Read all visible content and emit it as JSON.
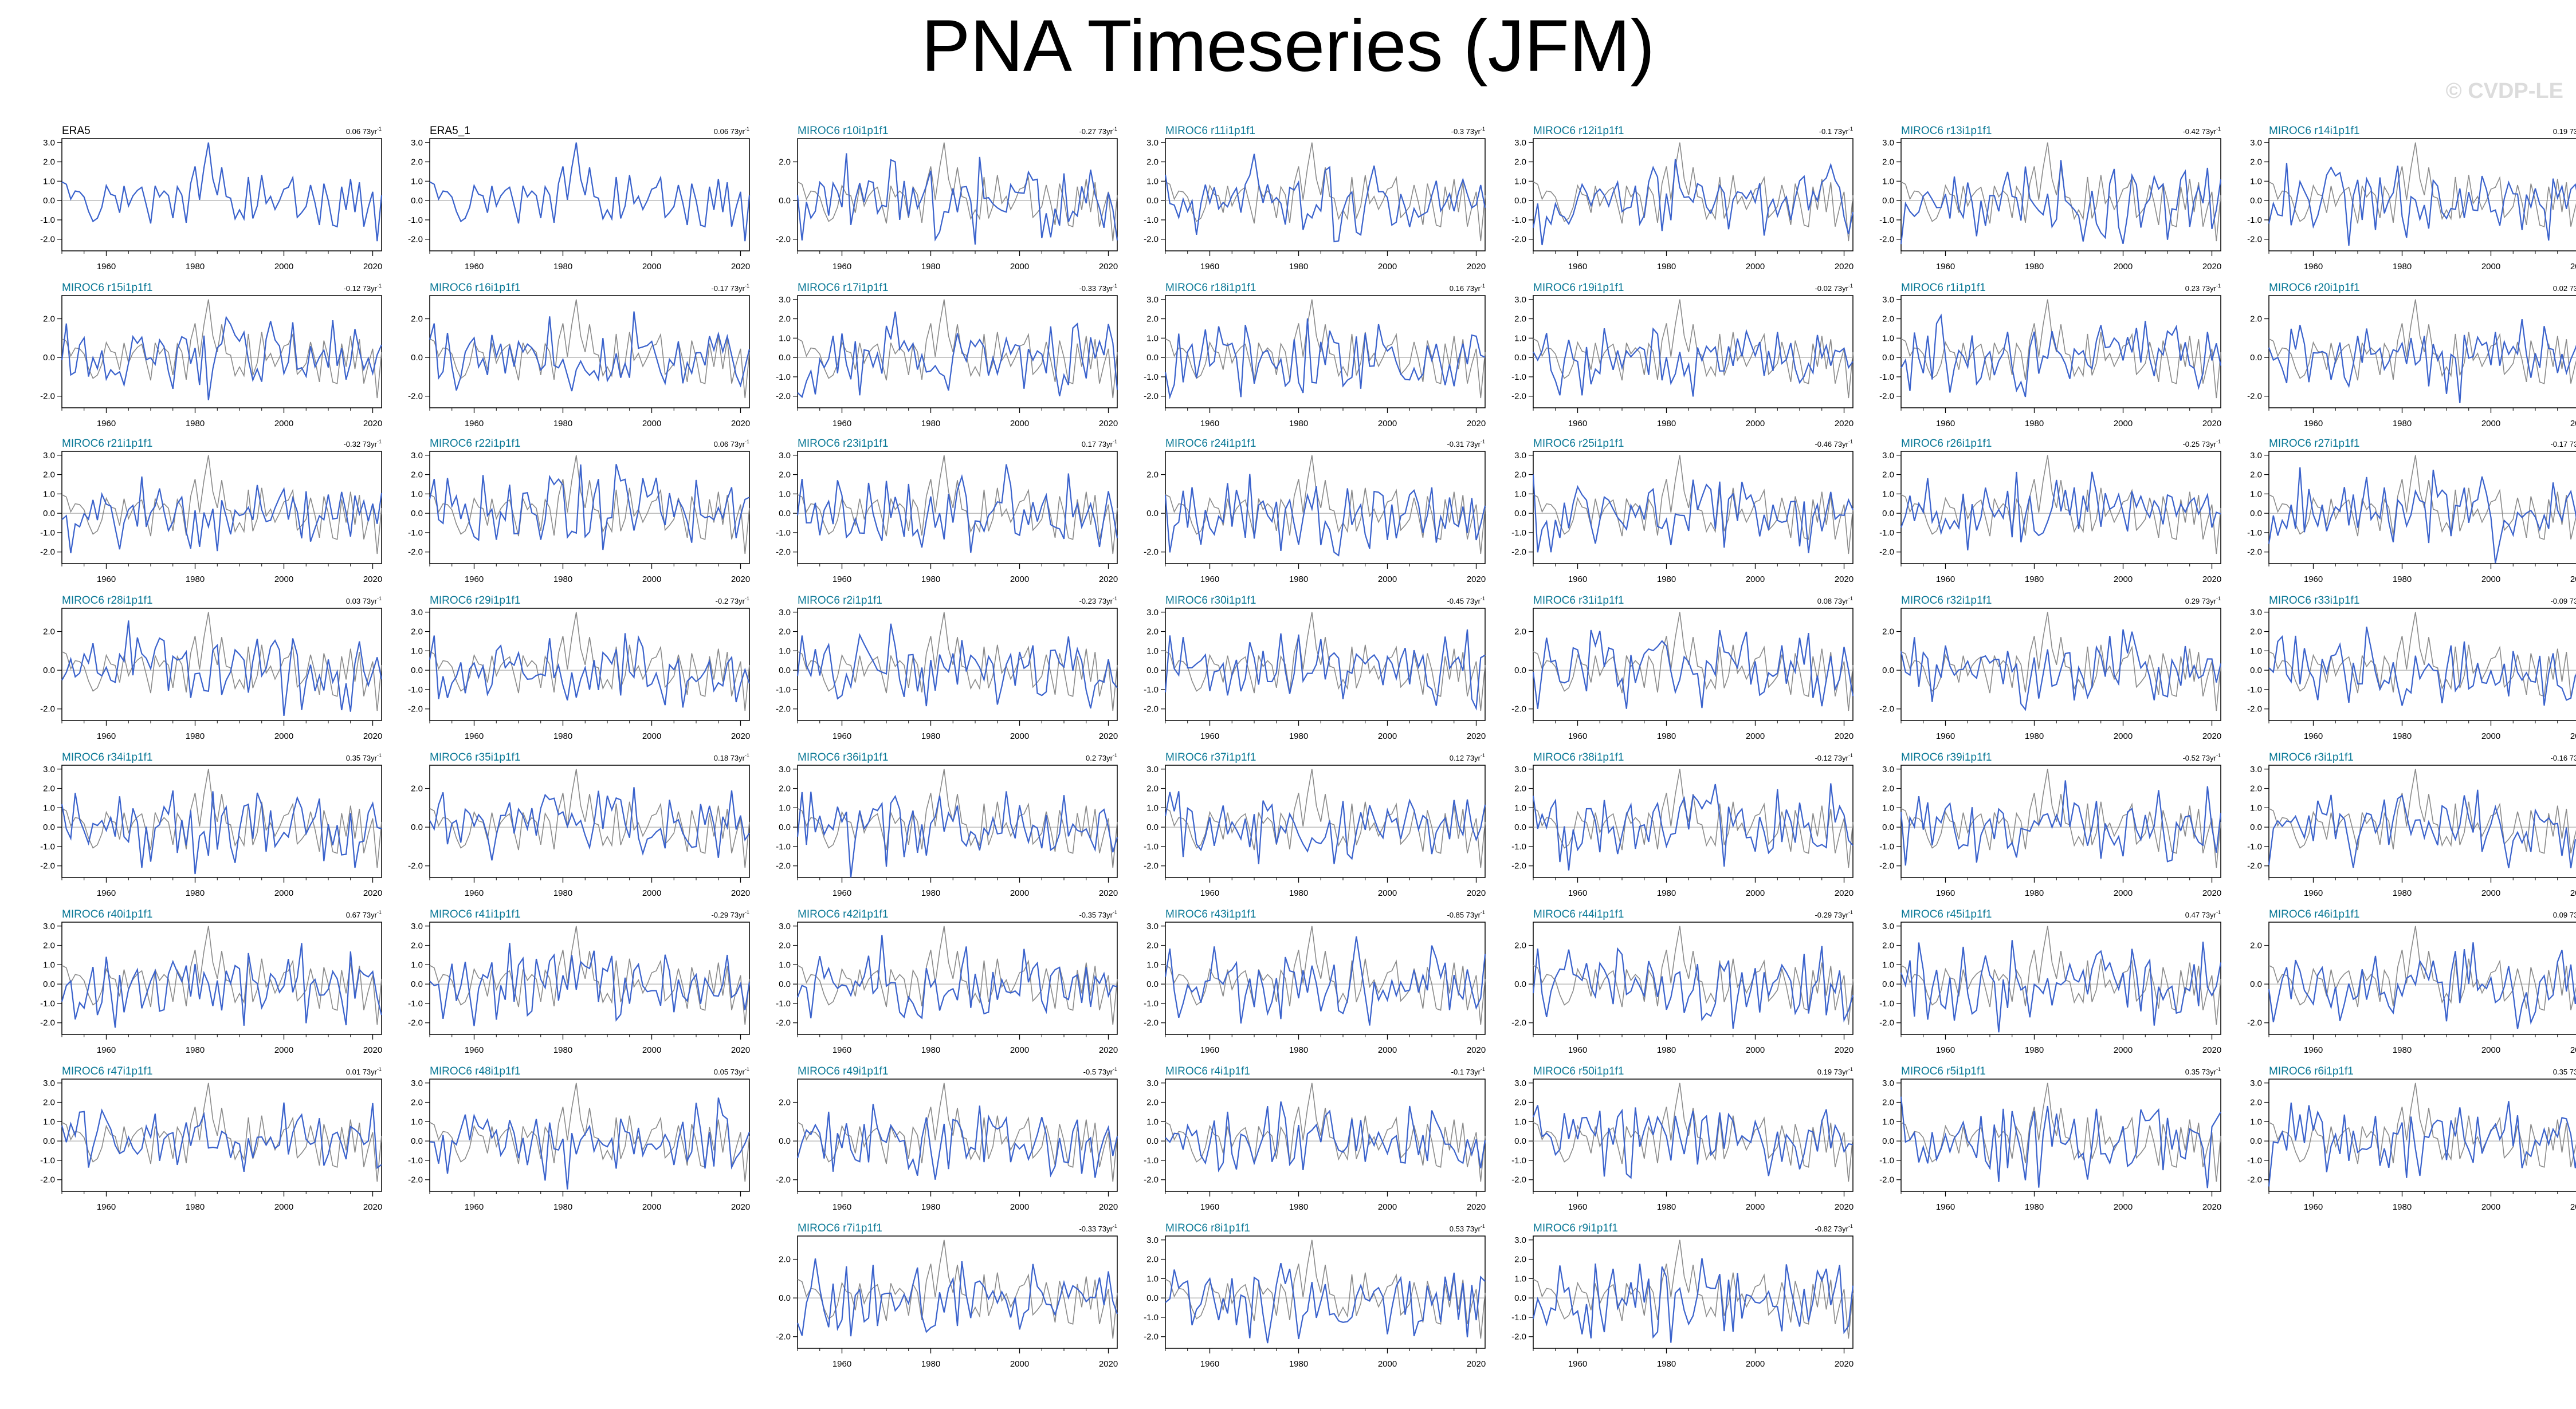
{
  "title": "PNA Timeseries (JFM)",
  "watermark": "© CVDP-LE",
  "colors": {
    "model": "#3a62cc",
    "observed": "#8a8a8a",
    "obs_title": "#000000",
    "model_title": "#0a7896",
    "axis": "#000000"
  },
  "chart_data": {
    "type": "line",
    "x_range": [
      1950,
      2022
    ],
    "x_ticks": [
      1960,
      1980,
      2000,
      2020
    ],
    "trend_unit": "73yr",
    "panels": [
      {
        "label": "ERA5",
        "trend": "0.06",
        "obs": true,
        "yticks": [
          "3.0",
          "2.0",
          "1.0",
          "0.0",
          "-1.0",
          "-2.0"
        ]
      },
      {
        "label": "ERA5_1",
        "trend": "0.06",
        "obs": true,
        "yticks": [
          "3.0",
          "2.0",
          "1.0",
          "0.0",
          "-1.0",
          "-2.0"
        ]
      },
      {
        "label": "MIROC6 r10i1p1f1",
        "trend": "-0.27",
        "yticks": [
          "2.0",
          "0.0",
          "-2.0"
        ]
      },
      {
        "label": "MIROC6 r11i1p1f1",
        "trend": "-0.3",
        "yticks": [
          "3.0",
          "2.0",
          "1.0",
          "0.0",
          "-1.0",
          "-2.0"
        ]
      },
      {
        "label": "MIROC6 r12i1p1f1",
        "trend": "-0.1",
        "yticks": [
          "3.0",
          "2.0",
          "1.0",
          "0.0",
          "-1.0",
          "-2.0"
        ]
      },
      {
        "label": "MIROC6 r13i1p1f1",
        "trend": "-0.42",
        "yticks": [
          "3.0",
          "2.0",
          "1.0",
          "0.0",
          "-1.0",
          "-2.0"
        ]
      },
      {
        "label": "MIROC6 r14i1p1f1",
        "trend": "0.19",
        "yticks": [
          "3.0",
          "2.0",
          "1.0",
          "0.0",
          "-1.0",
          "-2.0"
        ]
      },
      {
        "label": "MIROC6 r15i1p1f1",
        "trend": "-0.12",
        "yticks": [
          "2.0",
          "0.0",
          "-2.0"
        ]
      },
      {
        "label": "MIROC6 r16i1p1f1",
        "trend": "-0.17",
        "yticks": [
          "2.0",
          "0.0",
          "-2.0"
        ]
      },
      {
        "label": "MIROC6 r17i1p1f1",
        "trend": "-0.33",
        "yticks": [
          "3.0",
          "2.0",
          "1.0",
          "0.0",
          "-1.0",
          "-2.0"
        ]
      },
      {
        "label": "MIROC6 r18i1p1f1",
        "trend": "0.16",
        "yticks": [
          "3.0",
          "2.0",
          "1.0",
          "0.0",
          "-1.0",
          "-2.0"
        ]
      },
      {
        "label": "MIROC6 r19i1p1f1",
        "trend": "-0.02",
        "yticks": [
          "3.0",
          "2.0",
          "1.0",
          "0.0",
          "-1.0",
          "-2.0"
        ]
      },
      {
        "label": "MIROC6 r1i1p1f1",
        "trend": "0.23",
        "yticks": [
          "3.0",
          "2.0",
          "1.0",
          "0.0",
          "-1.0",
          "-2.0"
        ]
      },
      {
        "label": "MIROC6 r20i1p1f1",
        "trend": "0.02",
        "yticks": [
          "2.0",
          "0.0",
          "-2.0"
        ]
      },
      {
        "label": "MIROC6 r21i1p1f1",
        "trend": "-0.32",
        "yticks": [
          "3.0",
          "2.0",
          "1.0",
          "0.0",
          "-1.0",
          "-2.0"
        ]
      },
      {
        "label": "MIROC6 r22i1p1f1",
        "trend": "0.06",
        "yticks": [
          "3.0",
          "2.0",
          "1.0",
          "0.0",
          "-1.0",
          "-2.0"
        ]
      },
      {
        "label": "MIROC6 r23i1p1f1",
        "trend": "0.17",
        "yticks": [
          "3.0",
          "2.0",
          "1.0",
          "0.0",
          "-1.0",
          "-2.0"
        ]
      },
      {
        "label": "MIROC6 r24i1p1f1",
        "trend": "-0.31",
        "yticks": [
          "2.0",
          "0.0",
          "-2.0"
        ]
      },
      {
        "label": "MIROC6 r25i1p1f1",
        "trend": "-0.46",
        "yticks": [
          "3.0",
          "2.0",
          "1.0",
          "0.0",
          "-1.0",
          "-2.0"
        ]
      },
      {
        "label": "MIROC6 r26i1p1f1",
        "trend": "-0.25",
        "yticks": [
          "3.0",
          "2.0",
          "1.0",
          "0.0",
          "-1.0",
          "-2.0"
        ]
      },
      {
        "label": "MIROC6 r27i1p1f1",
        "trend": "-0.17",
        "yticks": [
          "3.0",
          "2.0",
          "1.0",
          "0.0",
          "-1.0",
          "-2.0"
        ]
      },
      {
        "label": "MIROC6 r28i1p1f1",
        "trend": "0.03",
        "yticks": [
          "2.0",
          "0.0",
          "-2.0"
        ]
      },
      {
        "label": "MIROC6 r29i1p1f1",
        "trend": "-0.2",
        "yticks": [
          "3.0",
          "2.0",
          "1.0",
          "0.0",
          "-1.0",
          "-2.0"
        ]
      },
      {
        "label": "MIROC6 r2i1p1f1",
        "trend": "-0.23",
        "yticks": [
          "3.0",
          "2.0",
          "1.0",
          "0.0",
          "-1.0",
          "-2.0"
        ]
      },
      {
        "label": "MIROC6 r30i1p1f1",
        "trend": "-0.45",
        "yticks": [
          "3.0",
          "2.0",
          "1.0",
          "0.0",
          "-1.0",
          "-2.0"
        ]
      },
      {
        "label": "MIROC6 r31i1p1f1",
        "trend": "0.08",
        "yticks": [
          "2.0",
          "0.0",
          "-2.0"
        ]
      },
      {
        "label": "MIROC6 r32i1p1f1",
        "trend": "0.29",
        "yticks": [
          "2.0",
          "0.0",
          "-2.0"
        ]
      },
      {
        "label": "MIROC6 r33i1p1f1",
        "trend": "-0.09",
        "yticks": [
          "3.0",
          "2.0",
          "1.0",
          "0.0",
          "-1.0",
          "-2.0"
        ]
      },
      {
        "label": "MIROC6 r34i1p1f1",
        "trend": "0.35",
        "yticks": [
          "3.0",
          "2.0",
          "1.0",
          "0.0",
          "-1.0",
          "-2.0"
        ]
      },
      {
        "label": "MIROC6 r35i1p1f1",
        "trend": "0.18",
        "yticks": [
          "2.0",
          "0.0",
          "-2.0"
        ]
      },
      {
        "label": "MIROC6 r36i1p1f1",
        "trend": "0.2",
        "yticks": [
          "3.0",
          "2.0",
          "1.0",
          "0.0",
          "-1.0",
          "-2.0"
        ]
      },
      {
        "label": "MIROC6 r37i1p1f1",
        "trend": "0.12",
        "yticks": [
          "3.0",
          "2.0",
          "1.0",
          "0.0",
          "-1.0",
          "-2.0"
        ]
      },
      {
        "label": "MIROC6 r38i1p1f1",
        "trend": "-0.12",
        "yticks": [
          "3.0",
          "2.0",
          "1.0",
          "0.0",
          "-1.0",
          "-2.0"
        ]
      },
      {
        "label": "MIROC6 r39i1p1f1",
        "trend": "-0.52",
        "yticks": [
          "3.0",
          "2.0",
          "1.0",
          "0.0",
          "-1.0",
          "-2.0"
        ]
      },
      {
        "label": "MIROC6 r3i1p1f1",
        "trend": "-0.16",
        "yticks": [
          "3.0",
          "2.0",
          "1.0",
          "0.0",
          "-1.0",
          "-2.0"
        ]
      },
      {
        "label": "MIROC6 r40i1p1f1",
        "trend": "0.67",
        "yticks": [
          "3.0",
          "2.0",
          "1.0",
          "0.0",
          "-1.0",
          "-2.0"
        ]
      },
      {
        "label": "MIROC6 r41i1p1f1",
        "trend": "-0.29",
        "yticks": [
          "3.0",
          "2.0",
          "1.0",
          "0.0",
          "-1.0",
          "-2.0"
        ]
      },
      {
        "label": "MIROC6 r42i1p1f1",
        "trend": "-0.35",
        "yticks": [
          "3.0",
          "2.0",
          "1.0",
          "0.0",
          "-1.0",
          "-2.0"
        ]
      },
      {
        "label": "MIROC6 r43i1p1f1",
        "trend": "-0.85",
        "yticks": [
          "3.0",
          "2.0",
          "1.0",
          "0.0",
          "-1.0",
          "-2.0"
        ]
      },
      {
        "label": "MIROC6 r44i1p1f1",
        "trend": "-0.29",
        "yticks": [
          "2.0",
          "0.0",
          "-2.0"
        ]
      },
      {
        "label": "MIROC6 r45i1p1f1",
        "trend": "0.47",
        "yticks": [
          "3.0",
          "2.0",
          "1.0",
          "0.0",
          "-1.0",
          "-2.0"
        ]
      },
      {
        "label": "MIROC6 r46i1p1f1",
        "trend": "0.09",
        "yticks": [
          "2.0",
          "0.0",
          "-2.0"
        ]
      },
      {
        "label": "MIROC6 r47i1p1f1",
        "trend": "0.01",
        "yticks": [
          "3.0",
          "2.0",
          "1.0",
          "0.0",
          "-1.0",
          "-2.0"
        ]
      },
      {
        "label": "MIROC6 r48i1p1f1",
        "trend": "0.05",
        "yticks": [
          "3.0",
          "2.0",
          "1.0",
          "0.0",
          "-1.0",
          "-2.0"
        ]
      },
      {
        "label": "MIROC6 r49i1p1f1",
        "trend": "-0.5",
        "yticks": [
          "2.0",
          "0.0",
          "-2.0"
        ]
      },
      {
        "label": "MIROC6 r4i1p1f1",
        "trend": "-0.1",
        "yticks": [
          "3.0",
          "2.0",
          "1.0",
          "0.0",
          "-1.0",
          "-2.0"
        ]
      },
      {
        "label": "MIROC6 r50i1p1f1",
        "trend": "0.19",
        "yticks": [
          "3.0",
          "2.0",
          "1.0",
          "0.0",
          "-1.0",
          "-2.0"
        ]
      },
      {
        "label": "MIROC6 r5i1p1f1",
        "trend": "0.35",
        "yticks": [
          "3.0",
          "2.0",
          "1.0",
          "0.0",
          "-1.0",
          "-2.0"
        ]
      },
      {
        "label": "MIROC6 r6i1p1f1",
        "trend": "0.35",
        "yticks": [
          "3.0",
          "2.0",
          "1.0",
          "0.0",
          "-1.0",
          "-2.0"
        ]
      },
      {
        "label": "MIROC6 r7i1p1f1",
        "trend": "-0.33",
        "yticks": [
          "2.0",
          "0.0",
          "-2.0"
        ]
      },
      {
        "label": "MIROC6 r8i1p1f1",
        "trend": "0.53",
        "yticks": [
          "3.0",
          "2.0",
          "1.0",
          "0.0",
          "-1.0",
          "-2.0"
        ]
      },
      {
        "label": "MIROC6 r9i1p1f1",
        "trend": "-0.82",
        "yticks": [
          "3.0",
          "2.0",
          "1.0",
          "0.0",
          "-1.0",
          "-2.0"
        ]
      }
    ]
  }
}
